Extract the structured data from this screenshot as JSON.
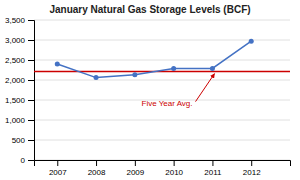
{
  "chart_data": {
    "type": "line",
    "title": "January Natural Gas Storage Levels (BCF)",
    "x": [
      2007,
      2008,
      2009,
      2010,
      2011,
      2012
    ],
    "xlim": [
      2006.4,
      2013.0
    ],
    "xticks": [
      2007,
      2008,
      2009,
      2010,
      2011,
      2012
    ],
    "ylim": [
      0,
      3500
    ],
    "yticks": [
      0,
      500,
      {
        "value": 1000,
        "label": "1,000"
      },
      {
        "value": 1500,
        "label": "1,500"
      },
      {
        "value": 2000,
        "label": "2,000"
      },
      {
        "value": 2500,
        "label": "2,500"
      },
      {
        "value": 3000,
        "label": "3,000"
      },
      {
        "value": 3500,
        "label": "3,500"
      }
    ],
    "series": [
      {
        "values": [
          2400,
          2060,
          2130,
          2290,
          2290,
          2970
        ],
        "color": "#4472C4",
        "marker": "circle"
      }
    ],
    "annotations": [
      {
        "text": "Five Year Avg.",
        "y": 2210,
        "color": "#CC0000"
      }
    ],
    "grid": true
  }
}
